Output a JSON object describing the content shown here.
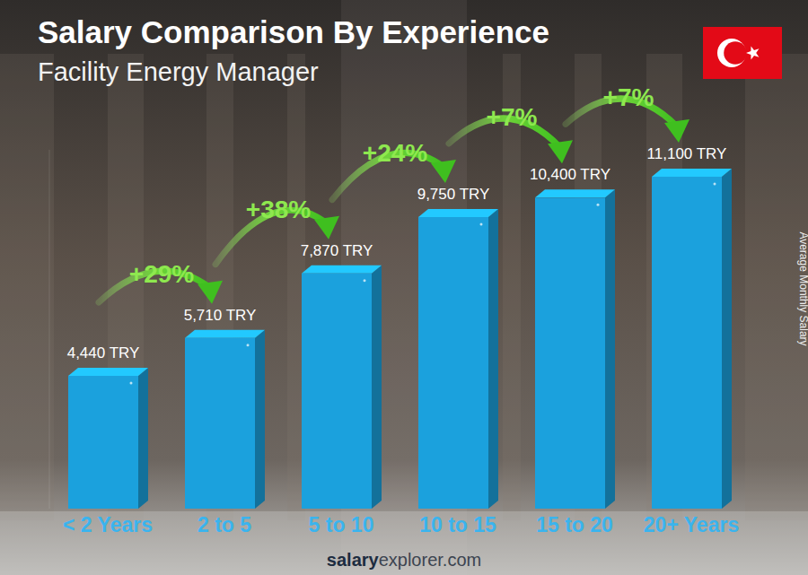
{
  "chart_data": {
    "type": "bar",
    "title": "Salary Comparison By Experience",
    "subtitle": "Facility Energy Manager",
    "categories": [
      "< 2 Years",
      "2 to 5",
      "5 to 10",
      "10 to 15",
      "15 to 20",
      "20+ Years"
    ],
    "values": [
      4440,
      5710,
      7870,
      9750,
      10400,
      11100
    ],
    "value_labels": [
      "4,440 TRY",
      "5,710 TRY",
      "7,870 TRY",
      "9,750 TRY",
      "10,400 TRY",
      "11,100 TRY"
    ],
    "data_labels": true,
    "color": "#1ba1dd",
    "ylabel": "Average Monthly Salary",
    "ylim": [
      0,
      12000
    ],
    "tick_labels": false,
    "grid": false,
    "annotations": [
      "+29%",
      "+38%",
      "+24%",
      "+7%",
      "+7%"
    ],
    "source": [
      "salary",
      "explorer.com"
    ]
  }
}
